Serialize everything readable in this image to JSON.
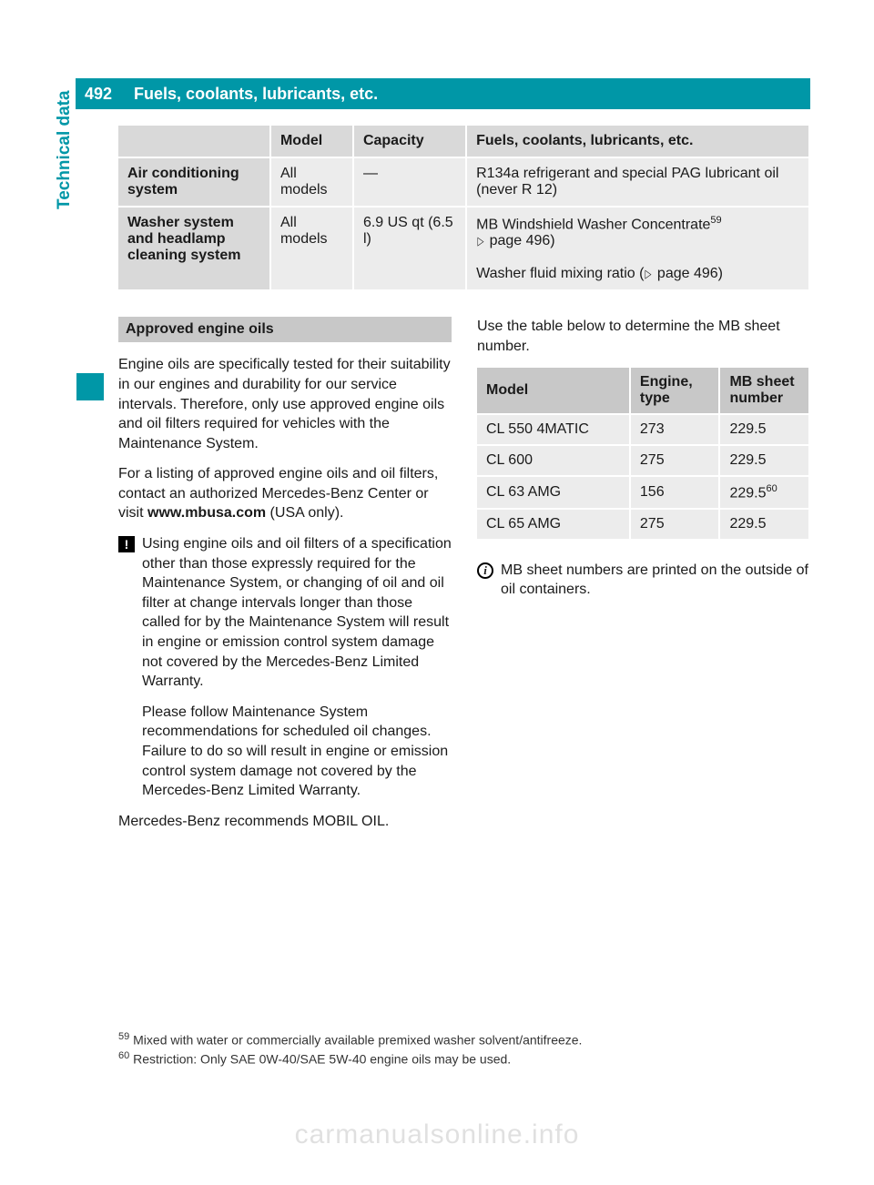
{
  "page_number": "492",
  "header_title": "Fuels, coolants, lubricants, etc.",
  "side_tab": "Technical data",
  "colors": {
    "accent": "#0097a7",
    "grey_dark": "#c8c8c8",
    "grey_hdr": "#d9d9d9",
    "grey_row": "#ececec",
    "text": "#1a1a1a",
    "white": "#ffffff"
  },
  "caps_table": {
    "columns": [
      "",
      "Model",
      "Capacity",
      "Fuels, coolants, lubricants, etc."
    ],
    "rows": [
      {
        "label": "Air conditioning system",
        "model": "All models",
        "capacity": "—",
        "fluid": "R134a refrigerant and special PAG lubricant oil (never R 12)"
      },
      {
        "label": "Washer system and headlamp cleaning system",
        "model": "All models",
        "capacity": "6.9 US qt (6.5 l)",
        "fluid_lines": [
          "MB Windshield Washer Concentrate",
          "(▷ page 496)",
          "Washer fluid mixing ratio (▷ page 496)"
        ],
        "fluid_sup": "59"
      }
    ]
  },
  "left_col": {
    "section_title": "Approved engine oils",
    "p1": "Engine oils are specifically tested for their suitability in our engines and durability for our service intervals. Therefore, only use approved engine oils and oil filters required for vehicles with the Maintenance System.",
    "p2_a": "For a listing of approved engine oils and oil filters, contact an authorized Mercedes-Benz Center or visit ",
    "p2_b": "www.mbusa.com",
    "p2_c": " (USA only).",
    "warn1": "Using engine oils and oil filters of a specification other than those expressly required for the Maintenance System, or changing of oil and oil filter at change intervals longer than those called for by the Maintenance System will result in engine or emission control system damage not covered by the Mercedes-Benz Limited Warranty.",
    "warn2": "Please follow Maintenance System recommendations for scheduled oil changes. Failure to do so will result in engine or emission control system damage not covered by the Mercedes-Benz Limited Warranty.",
    "p3": "Mercedes-Benz recommends MOBIL OIL."
  },
  "right_col": {
    "intro": "Use the table below to determine the MB sheet number.",
    "mb_table": {
      "columns": [
        "Model",
        "Engine, type",
        "MB sheet number"
      ],
      "rows": [
        {
          "model": "CL 550 4MATIC",
          "engine": "273",
          "sheet": "229.5",
          "sup": ""
        },
        {
          "model": "CL 600",
          "engine": "275",
          "sheet": "229.5",
          "sup": ""
        },
        {
          "model": "CL 63 AMG",
          "engine": "156",
          "sheet": "229.5",
          "sup": "60"
        },
        {
          "model": "CL 65 AMG",
          "engine": "275",
          "sheet": "229.5",
          "sup": ""
        }
      ]
    },
    "info_note": "MB sheet numbers are printed on the outside of oil containers."
  },
  "footnotes": {
    "f59": "Mixed with water or commercially available premixed washer solvent/antifreeze.",
    "f60": "Restriction: Only SAE 0W-40/SAE 5W-40 engine oils may be used."
  },
  "watermark": "carmanualsonline.info"
}
